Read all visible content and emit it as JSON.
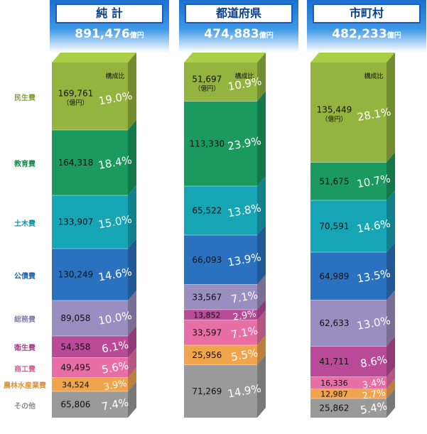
{
  "categories": [
    "民生費",
    "教育費",
    "土木費",
    "公債費",
    "総務費",
    "衛生費",
    "商工費",
    "農林水産業費",
    "その他"
  ],
  "category_colors": [
    "#93b43e",
    "#1a9a5e",
    "#16a5b5",
    "#2a72c0",
    "#9a8dc0",
    "#b84a98",
    "#e86fa6",
    "#f0a44c",
    "#9a9a9a"
  ],
  "columns": [
    {
      "title": "純 計",
      "total": "891,476",
      "total_unit": "億円",
      "ratio_label": "構成比",
      "first_value_unit": "（億円）",
      "values": [
        "169,761",
        "164,318",
        "133,907",
        "130,249",
        "89,058",
        "54,358",
        "49,495",
        "34,524",
        "65,806"
      ],
      "ratios": [
        "19.0%",
        "18.4%",
        "15.0%",
        "14.6%",
        "10.0%",
        "6.1%",
        "5.6%",
        "3.9%",
        "7.4%"
      ]
    },
    {
      "title": "都道府県",
      "total": "474,883",
      "total_unit": "億円",
      "ratio_label": "構成比",
      "first_value_unit": "（億円）",
      "values": [
        "51,697",
        "113,330",
        "65,522",
        "66,093",
        "33,567",
        "13,852",
        "33,597",
        "25,956",
        "71,269"
      ],
      "ratios": [
        "10.9%",
        "23.9%",
        "13.8%",
        "13.9%",
        "7.1%",
        "2.9%",
        "7.1%",
        "5.5%",
        "14.9%"
      ]
    },
    {
      "title": "市町村",
      "total": "482,233",
      "total_unit": "億円",
      "ratio_label": "構成比",
      "first_value_unit": "（億円）",
      "values": [
        "135,449",
        "51,675",
        "70,591",
        "64,989",
        "62,633",
        "41,711",
        "16,336",
        "12,987",
        "25,862"
      ],
      "ratios": [
        "28.1%",
        "10.7%",
        "14.6%",
        "13.5%",
        "13.0%",
        "8.6%",
        "3.4%",
        "2.7%",
        "5.4%"
      ]
    }
  ],
  "chart_data": {
    "type": "bar",
    "stacked": true,
    "normalized": true,
    "categories": [
      "純 計",
      "都道府県",
      "市町村"
    ],
    "totals": [
      891476,
      474883,
      482233
    ],
    "total_unit": "億円",
    "series": [
      {
        "name": "民生費",
        "values": [
          169761,
          51697,
          135449
        ],
        "ratios": [
          19.0,
          10.9,
          28.1
        ]
      },
      {
        "name": "教育費",
        "values": [
          164318,
          113330,
          51675
        ],
        "ratios": [
          18.4,
          23.9,
          10.7
        ]
      },
      {
        "name": "土木費",
        "values": [
          133907,
          65522,
          70591
        ],
        "ratios": [
          15.0,
          13.8,
          14.6
        ]
      },
      {
        "name": "公債費",
        "values": [
          130249,
          66093,
          64989
        ],
        "ratios": [
          14.6,
          13.9,
          13.5
        ]
      },
      {
        "name": "総務費",
        "values": [
          89058,
          33567,
          62633
        ],
        "ratios": [
          10.0,
          7.1,
          13.0
        ]
      },
      {
        "name": "衛生費",
        "values": [
          54358,
          13852,
          41711
        ],
        "ratios": [
          6.1,
          2.9,
          8.6
        ]
      },
      {
        "name": "商工費",
        "values": [
          49495,
          33597,
          16336
        ],
        "ratios": [
          5.6,
          7.1,
          3.4
        ]
      },
      {
        "name": "農林水産業費",
        "values": [
          34524,
          25956,
          12987
        ],
        "ratios": [
          3.9,
          5.5,
          2.7
        ]
      },
      {
        "name": "その他",
        "values": [
          65806,
          71269,
          25862
        ],
        "ratios": [
          7.4,
          14.9,
          5.4
        ]
      }
    ],
    "ratio_label": "構成比",
    "legend": "left"
  }
}
